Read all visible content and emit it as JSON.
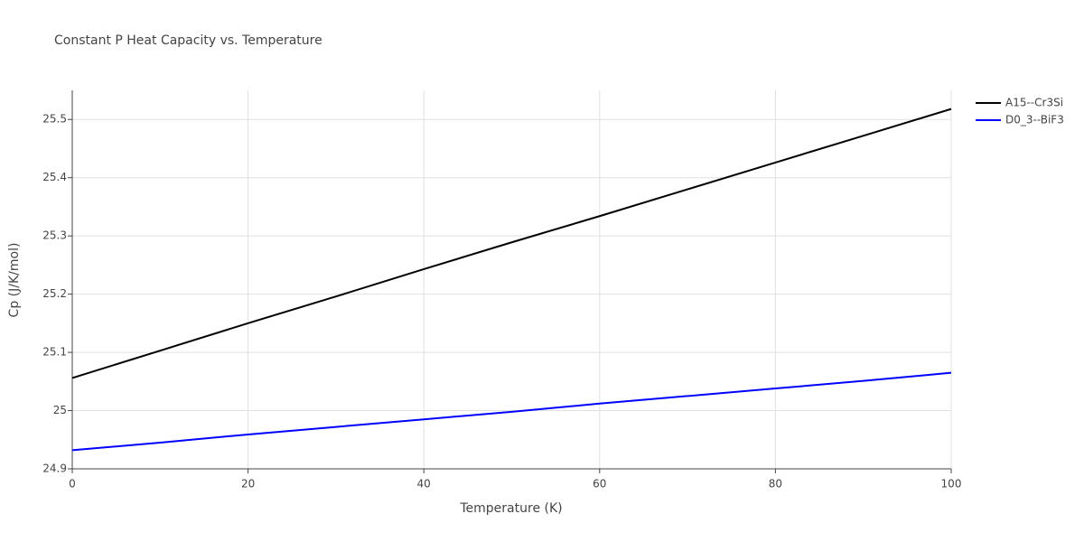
{
  "chart_data": {
    "type": "line",
    "title": "Constant P Heat Capacity vs. Temperature",
    "x_label": "Temperature (K)",
    "y_label": "Cp (J/K/mol)",
    "x": [
      0,
      10,
      20,
      30,
      40,
      50,
      60,
      70,
      80,
      90,
      100
    ],
    "series": [
      {
        "name": "A15--Cr3Si",
        "color": "#000000",
        "values": [
          25.056,
          25.103,
          25.15,
          25.196,
          25.243,
          25.289,
          25.334,
          25.38,
          25.426,
          25.472,
          25.518
        ]
      },
      {
        "name": "D0_3--BiF3",
        "color": "#0000ff",
        "values": [
          24.932,
          24.945,
          24.959,
          24.972,
          24.985,
          24.998,
          25.012,
          25.025,
          25.038,
          25.051,
          25.065
        ]
      }
    ],
    "xlim": [
      0,
      100
    ],
    "xticks": [
      0,
      20,
      40,
      60,
      80,
      100
    ],
    "ylim": [
      24.9,
      25.55
    ],
    "yticks": [
      24.9,
      25,
      25.1,
      25.2,
      25.3,
      25.4,
      25.5
    ],
    "grid": true,
    "legend": "right"
  }
}
